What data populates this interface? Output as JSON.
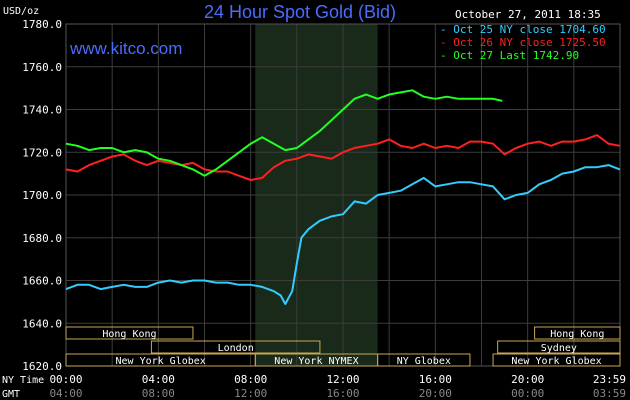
{
  "header": {
    "title": "24 Hour Spot Gold (Bid)",
    "unit": "USD/oz",
    "timestamp": "October 27, 2011 18:35",
    "website": "www.kitco.com"
  },
  "legend": [
    {
      "label": "Oct 25 NY close 1704.60",
      "color": "#33ccff"
    },
    {
      "label": "Oct 26 NY close 1725.50",
      "color": "#ff2020"
    },
    {
      "label": "Oct 27 Last 1742.90",
      "color": "#22ff22"
    }
  ],
  "axis": {
    "row_ny": "NY Time",
    "row_gmt": "GMT",
    "ny_ticks": [
      "00:00",
      "04:00",
      "08:00",
      "12:00",
      "16:00",
      "20:00",
      "23:59"
    ],
    "gmt_ticks": [
      "04:00",
      "08:00",
      "12:00",
      "16:00",
      "20:00",
      "00:00",
      "03:59"
    ]
  },
  "sessions": [
    {
      "label": "Hong Kong",
      "start": 0,
      "end": 5.5,
      "row": 0
    },
    {
      "label": "Hong Kong",
      "start": 20.3,
      "end": 24,
      "row": 0
    },
    {
      "label": "London",
      "start": 3.7,
      "end": 11.0,
      "row": 1
    },
    {
      "label": "Sydney",
      "start": 18.7,
      "end": 24,
      "row": 1
    },
    {
      "label": "New York Globex",
      "start": 0,
      "end": 8.2,
      "row": 2
    },
    {
      "label": "New York NYMEX",
      "start": 8.2,
      "end": 13.5,
      "row": 2
    },
    {
      "label": "NY Globex",
      "start": 13.5,
      "end": 17.5,
      "row": 2
    },
    {
      "label": "New York Globex",
      "start": 18.5,
      "end": 24,
      "row": 2
    }
  ],
  "colors": {
    "background": "#000000",
    "grid": "#3c3c3c",
    "session_box": "#c8a850",
    "text": "#ffffff",
    "title": "#4a6cff",
    "website": "#4a6cff",
    "nymex_shade": "#1a2a1a"
  },
  "chart_data": {
    "type": "line",
    "title": "24 Hour Spot Gold (Bid)",
    "ylabel": "USD/oz",
    "ylim": [
      1620,
      1780
    ],
    "yticks": [
      1620,
      1640,
      1660,
      1680,
      1700,
      1720,
      1740,
      1760,
      1780
    ],
    "xlim": [
      0,
      24
    ],
    "shaded_region": [
      8.2,
      13.5
    ],
    "series": [
      {
        "name": "Oct 25 NY close 1704.60",
        "color": "#33ccff",
        "points": [
          [
            0,
            1656
          ],
          [
            0.5,
            1658
          ],
          [
            1,
            1658
          ],
          [
            1.5,
            1656
          ],
          [
            2,
            1657
          ],
          [
            2.5,
            1658
          ],
          [
            3,
            1657
          ],
          [
            3.5,
            1657
          ],
          [
            4,
            1659
          ],
          [
            4.5,
            1660
          ],
          [
            5,
            1659
          ],
          [
            5.5,
            1660
          ],
          [
            6,
            1660
          ],
          [
            6.5,
            1659
          ],
          [
            7,
            1659
          ],
          [
            7.5,
            1658
          ],
          [
            8,
            1658
          ],
          [
            8.5,
            1657
          ],
          [
            9,
            1655
          ],
          [
            9.3,
            1653
          ],
          [
            9.5,
            1649
          ],
          [
            9.8,
            1655
          ],
          [
            10,
            1668
          ],
          [
            10.2,
            1680
          ],
          [
            10.5,
            1684
          ],
          [
            11,
            1688
          ],
          [
            11.5,
            1690
          ],
          [
            12,
            1691
          ],
          [
            12.5,
            1697
          ],
          [
            13,
            1696
          ],
          [
            13.5,
            1700
          ],
          [
            14,
            1701
          ],
          [
            14.5,
            1702
          ],
          [
            15,
            1705
          ],
          [
            15.5,
            1708
          ],
          [
            16,
            1704
          ],
          [
            16.5,
            1705
          ],
          [
            17,
            1706
          ],
          [
            17.5,
            1706
          ],
          [
            18,
            1705
          ],
          [
            18.5,
            1704
          ],
          [
            19,
            1698
          ],
          [
            19.5,
            1700
          ],
          [
            20,
            1701
          ],
          [
            20.5,
            1705
          ],
          [
            21,
            1707
          ],
          [
            21.5,
            1710
          ],
          [
            22,
            1711
          ],
          [
            22.5,
            1713
          ],
          [
            23,
            1713
          ],
          [
            23.5,
            1714
          ],
          [
            23.99,
            1712
          ]
        ]
      },
      {
        "name": "Oct 26 NY close 1725.50",
        "color": "#ff2020",
        "points": [
          [
            0,
            1712
          ],
          [
            0.5,
            1711
          ],
          [
            1,
            1714
          ],
          [
            1.5,
            1716
          ],
          [
            2,
            1718
          ],
          [
            2.5,
            1719
          ],
          [
            3,
            1716
          ],
          [
            3.5,
            1714
          ],
          [
            4,
            1716
          ],
          [
            4.5,
            1715
          ],
          [
            5,
            1714
          ],
          [
            5.5,
            1715
          ],
          [
            6,
            1712
          ],
          [
            6.5,
            1711
          ],
          [
            7,
            1711
          ],
          [
            7.5,
            1709
          ],
          [
            8,
            1707
          ],
          [
            8.5,
            1708
          ],
          [
            9,
            1713
          ],
          [
            9.5,
            1716
          ],
          [
            10,
            1717
          ],
          [
            10.5,
            1719
          ],
          [
            11,
            1718
          ],
          [
            11.5,
            1717
          ],
          [
            12,
            1720
          ],
          [
            12.5,
            1722
          ],
          [
            13,
            1723
          ],
          [
            13.5,
            1724
          ],
          [
            14,
            1726
          ],
          [
            14.5,
            1723
          ],
          [
            15,
            1722
          ],
          [
            15.5,
            1724
          ],
          [
            16,
            1722
          ],
          [
            16.5,
            1723
          ],
          [
            17,
            1722
          ],
          [
            17.5,
            1725
          ],
          [
            18,
            1725
          ],
          [
            18.5,
            1724
          ],
          [
            19,
            1719
          ],
          [
            19.5,
            1722
          ],
          [
            20,
            1724
          ],
          [
            20.5,
            1725
          ],
          [
            21,
            1723
          ],
          [
            21.5,
            1725
          ],
          [
            22,
            1725
          ],
          [
            22.5,
            1726
          ],
          [
            23,
            1728
          ],
          [
            23.5,
            1724
          ],
          [
            23.99,
            1723
          ]
        ]
      },
      {
        "name": "Oct 27 Last 1742.90",
        "color": "#22ff22",
        "points": [
          [
            0,
            1724
          ],
          [
            0.5,
            1723
          ],
          [
            1,
            1721
          ],
          [
            1.5,
            1722
          ],
          [
            2,
            1722
          ],
          [
            2.5,
            1720
          ],
          [
            3,
            1721
          ],
          [
            3.5,
            1720
          ],
          [
            4,
            1717
          ],
          [
            4.5,
            1716
          ],
          [
            5,
            1714
          ],
          [
            5.5,
            1712
          ],
          [
            6,
            1709
          ],
          [
            6.5,
            1712
          ],
          [
            7,
            1716
          ],
          [
            7.5,
            1720
          ],
          [
            8,
            1724
          ],
          [
            8.5,
            1727
          ],
          [
            9,
            1724
          ],
          [
            9.5,
            1721
          ],
          [
            10,
            1722
          ],
          [
            10.5,
            1726
          ],
          [
            11,
            1730
          ],
          [
            11.5,
            1735
          ],
          [
            12,
            1740
          ],
          [
            12.5,
            1745
          ],
          [
            13,
            1747
          ],
          [
            13.5,
            1745
          ],
          [
            14,
            1747
          ],
          [
            14.5,
            1748
          ],
          [
            15,
            1749
          ],
          [
            15.5,
            1746
          ],
          [
            16,
            1745
          ],
          [
            16.5,
            1746
          ],
          [
            17,
            1745
          ],
          [
            17.5,
            1745
          ],
          [
            18,
            1745
          ],
          [
            18.5,
            1745
          ],
          [
            18.9,
            1744
          ]
        ]
      }
    ]
  }
}
